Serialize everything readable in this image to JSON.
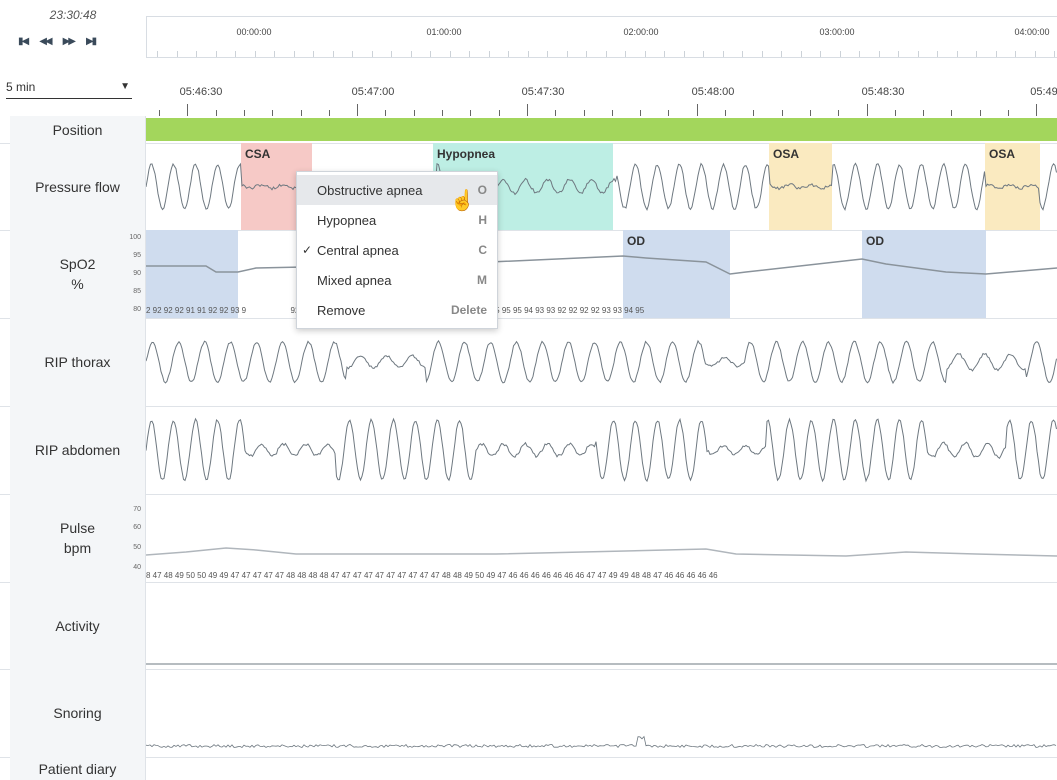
{
  "clock": {
    "time": "23:30:48"
  },
  "transport": {
    "first": "◀◀",
    "prev": "◀◀",
    "next": "▶▶",
    "last": "▶▶"
  },
  "overview": {
    "labels": [
      "00:00:00",
      "01:00:00",
      "02:00:00",
      "03:00:00",
      "04:00:00"
    ]
  },
  "window_select": {
    "value": "5 min"
  },
  "timebar": {
    "labels": [
      "05:46:30",
      "05:47:00",
      "05:47:30",
      "05:48:00",
      "05:48:30",
      "05:49"
    ]
  },
  "channels": {
    "position": "Position",
    "pressure_flow": "Pressure flow",
    "spo2": "SpO2",
    "spo2_unit": "%",
    "spo2_scale": [
      "100",
      "95",
      "90",
      "85",
      "80"
    ],
    "rip_thorax": "RIP thorax",
    "rip_abdomen": "RIP abdomen",
    "pulse": "Pulse",
    "pulse_unit": "bpm",
    "pulse_scale": [
      "70",
      "60",
      "50",
      "40"
    ],
    "activity": "Activity",
    "snoring": "Snoring",
    "patient_diary": "Patient diary"
  },
  "events": {
    "csa": "CSA",
    "hypopnea": "Hypopnea",
    "osa1": "OSA",
    "osa2": "OSA",
    "od1": "OD",
    "od2": "OD"
  },
  "spo2_values": "2 92 92 92 91 91 92 92 93 9                    92 93 94 94 94 94 94 94 93 93 92 92 91 91 92 92 93 94 95 95 95 94 93 93 92 92 92 92 93 93 94 95",
  "pulse_values": "8 47 48 49 50 50 49 49 47 47 47 47 47 48 48 48 48 47 47 47 47 47 47 47 47 47 47 48 48 49 50 49 47 46 46 46 46 46 46 46 47 47 49 49 48 48 47 46 46 46 46 46",
  "context_menu": {
    "items": [
      {
        "label": "Obstructive apnea",
        "key": "O",
        "checked": false,
        "hover": true
      },
      {
        "label": "Hypopnea",
        "key": "H",
        "checked": false,
        "hover": false
      },
      {
        "label": "Central apnea",
        "key": "C",
        "checked": true,
        "hover": false
      },
      {
        "label": "Mixed apnea",
        "key": "M",
        "checked": false,
        "hover": false
      },
      {
        "label": "Remove",
        "key": "Delete",
        "checked": false,
        "hover": false
      }
    ]
  },
  "colors": {
    "position_bar": "#a3d65c",
    "csa": "#f6c9c6",
    "hypopnea": "#bdeee4",
    "osa": "#faeac0",
    "od": "#cfdcee",
    "trace": "#6e7880"
  }
}
